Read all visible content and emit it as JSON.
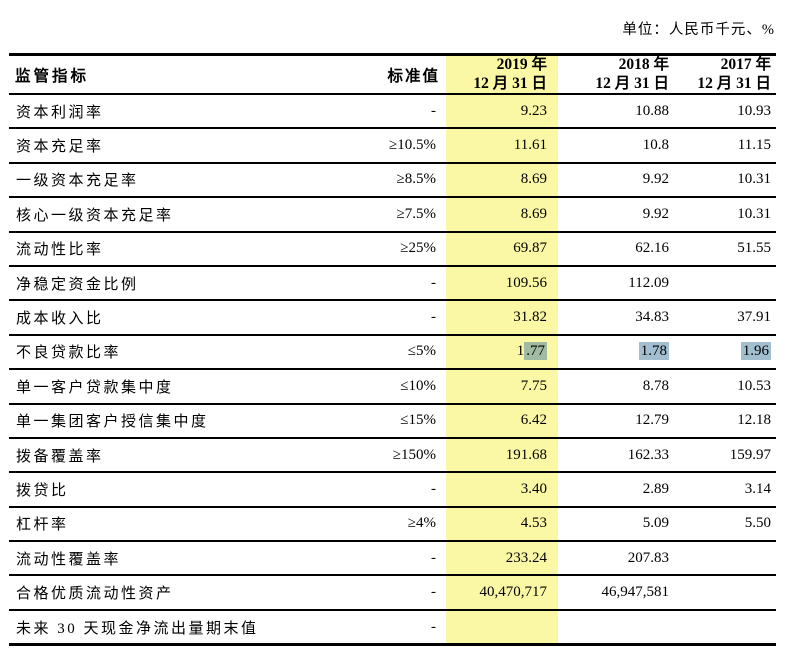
{
  "meta": {
    "unit_label": "单位：人民币千元、%"
  },
  "colors": {
    "column_highlight": "#faf8a5",
    "selection_highlight": "rgba(70,125,160,0.5)"
  },
  "table": {
    "headers": {
      "indicator": "监管指标",
      "standard": "标准值",
      "y2019": [
        "2019 年",
        "12 月 31 日"
      ],
      "y2018": [
        "2018 年",
        "12 月 31 日"
      ],
      "y2017": [
        "2017 年",
        "12 月 31 日"
      ]
    },
    "rows": [
      {
        "indicator": "资本利润率",
        "standard": "-",
        "y2019": "9.23",
        "y2018": "10.88",
        "y2017": "10.93"
      },
      {
        "indicator": "资本充足率",
        "standard": "≥10.5%",
        "y2019": "11.61",
        "y2018": "10.8",
        "y2017": "11.15"
      },
      {
        "indicator": "一级资本充足率",
        "standard": "≥8.5%",
        "y2019": "8.69",
        "y2018": "9.92",
        "y2017": "10.31"
      },
      {
        "indicator": "核心一级资本充足率",
        "standard": "≥7.5%",
        "y2019": "8.69",
        "y2018": "9.92",
        "y2017": "10.31"
      },
      {
        "indicator": "流动性比率",
        "standard": "≥25%",
        "y2019": "69.87",
        "y2018": "62.16",
        "y2017": "51.55"
      },
      {
        "indicator": "净稳定资金比例",
        "standard": "-",
        "y2019": "109.56",
        "y2018": "112.09",
        "y2017": ""
      },
      {
        "indicator": "成本收入比",
        "standard": "-",
        "y2019": "31.82",
        "y2018": "34.83",
        "y2017": "37.91"
      },
      {
        "indicator": "不良贷款比率",
        "standard": "≤5%",
        "y2019": {
          "pre": "1",
          "mark": ".77"
        },
        "y2018": {
          "pre": "",
          "mark": "1.78"
        },
        "y2017": {
          "pre": "",
          "mark": "1.96"
        }
      },
      {
        "indicator": "单一客户贷款集中度",
        "standard": "≤10%",
        "y2019": "7.75",
        "y2018": "8.78",
        "y2017": "10.53"
      },
      {
        "indicator": "单一集团客户授信集中度",
        "standard": "≤15%",
        "y2019": "6.42",
        "y2018": "12.79",
        "y2017": "12.18"
      },
      {
        "indicator": "拨备覆盖率",
        "standard": "≥150%",
        "y2019": "191.68",
        "y2018": "162.33",
        "y2017": "159.97"
      },
      {
        "indicator": "拨贷比",
        "standard": "-",
        "y2019": "3.40",
        "y2018": "2.89",
        "y2017": "3.14"
      },
      {
        "indicator": "杠杆率",
        "standard": "≥4%",
        "y2019": "4.53",
        "y2018": "5.09",
        "y2017": "5.50"
      },
      {
        "indicator": "流动性覆盖率",
        "standard": "-",
        "y2019": "233.24",
        "y2018": "207.83",
        "y2017": ""
      },
      {
        "indicator": "合格优质流动性资产",
        "standard": "-",
        "y2019": "40,470,717",
        "y2018": "46,947,581",
        "y2017": ""
      },
      {
        "indicator": "未来 30 天现金净流出量期末值",
        "standard": "-",
        "y2019": "",
        "y2018": "",
        "y2017": ""
      }
    ]
  }
}
